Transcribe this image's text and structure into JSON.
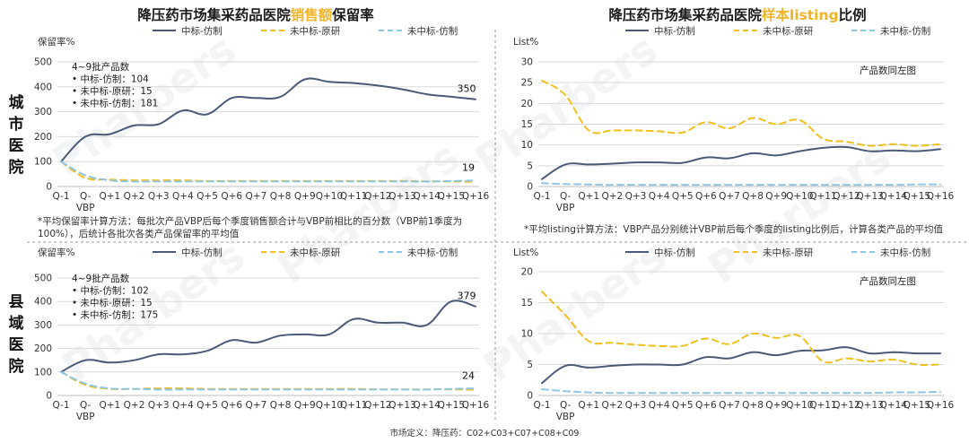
{
  "left_titles": {
    "top": "降压药市场集采药品医院销售额保留率",
    "bottom": ""
  },
  "right_titles": {
    "top": "降压药市场集采药品医院样本listing比例",
    "bottom": ""
  },
  "title_parts": {
    "left": {
      "pre": "降压药市场集采药品医院",
      "highlight": "销售额",
      "post": "保留率"
    },
    "right": {
      "pre": "降压药市场集采药品医院",
      "highlight": "样本listing",
      "post": "比例"
    }
  },
  "row_labels": {
    "city": "城市医院",
    "county": "县域医院"
  },
  "legend": [
    "中标-仿制",
    "未中标-原研",
    "未中标-仿制"
  ],
  "colors": {
    "series1": "#4a5a78",
    "series2": "#f0c020",
    "series3": "#8ec6e6",
    "highlight": "#f0b428",
    "grid": "#d9d9d9"
  },
  "notes": {
    "left": "*平均保留率计算方法：每批次产品VBP后每个季度销售额合计与VBP前相比的百分数（VBP前1季度为100%），后统计各批次各类产品保留率的平均值",
    "right": "*平均listing计算方法：VBP产品分别统计VBP前后每个季度的listing比例后，计算各类产品的平均值"
  },
  "footer": "市场定义：降压药：C02+C03+C07+C08+C09",
  "watermark": "Pharbers",
  "chart_data": [
    {
      "id": "city-retention",
      "type": "line",
      "title": "降压药市场集采药品医院销售额保留率",
      "ylabel": "保留率%",
      "ylim": [
        0,
        500
      ],
      "yticks": [
        0,
        100,
        200,
        300,
        400,
        500
      ],
      "categories": [
        "Q-1",
        "Q-VBP",
        "Q+1",
        "Q+2",
        "Q+3",
        "Q+4",
        "Q+5",
        "Q+6",
        "Q+7",
        "Q+8",
        "Q+9",
        "Q+10",
        "Q+11",
        "Q+12",
        "Q+13",
        "Q+14",
        "Q+15",
        "Q+16"
      ],
      "series": [
        {
          "name": "中标-仿制",
          "values": [
            100,
            200,
            210,
            245,
            250,
            305,
            290,
            355,
            355,
            360,
            430,
            420,
            415,
            405,
            390,
            370,
            360,
            350
          ]
        },
        {
          "name": "未中标-原研",
          "values": [
            100,
            35,
            28,
            25,
            25,
            25,
            22,
            22,
            22,
            22,
            22,
            22,
            22,
            22,
            22,
            21,
            20,
            19
          ]
        },
        {
          "name": "未中标-仿制",
          "values": [
            100,
            45,
            25,
            20,
            20,
            20,
            20,
            20,
            20,
            20,
            20,
            20,
            20,
            20,
            20,
            20,
            22,
            24
          ]
        }
      ],
      "data_labels": [
        "350",
        "19"
      ],
      "annotation": {
        "lines": [
          "4~9批产品数",
          "• 中标-仿制：104",
          "• 未中标-原研：15",
          "• 未中标-仿制：181"
        ]
      }
    },
    {
      "id": "city-listing",
      "type": "line",
      "title": "降压药市场集采药品医院样本listing比例",
      "ylabel": "List%",
      "ylim": [
        0,
        30
      ],
      "yticks": [
        0,
        5,
        10,
        15,
        20,
        25,
        30
      ],
      "categories": [
        "Q-1",
        "Q-VBP",
        "Q+1",
        "Q+2",
        "Q+3",
        "Q+4",
        "Q+5",
        "Q+6",
        "Q+7",
        "Q+8",
        "Q+9",
        "Q+10",
        "Q+11",
        "Q+12",
        "Q+13",
        "Q+14",
        "Q+15",
        "Q+16"
      ],
      "series": [
        {
          "name": "中标-仿制",
          "values": [
            1.8,
            5.3,
            5.3,
            5.5,
            5.8,
            5.8,
            5.7,
            7.0,
            6.8,
            8.0,
            7.5,
            8.5,
            9.3,
            9.5,
            8.5,
            8.7,
            8.5,
            9.0
          ]
        },
        {
          "name": "未中标-原研",
          "values": [
            25.5,
            22.0,
            13.5,
            13.5,
            13.5,
            13.3,
            13.0,
            15.5,
            14.0,
            16.5,
            15.0,
            16.0,
            11.5,
            10.8,
            9.8,
            10.2,
            9.8,
            10.2
          ]
        },
        {
          "name": "未中标-仿制",
          "values": [
            0.8,
            0.6,
            0.5,
            0.4,
            0.4,
            0.4,
            0.4,
            0.4,
            0.4,
            0.4,
            0.4,
            0.4,
            0.4,
            0.4,
            0.4,
            0.4,
            0.5,
            0.5
          ]
        }
      ],
      "annotation": {
        "lines": [
          "产品数同左图"
        ]
      }
    },
    {
      "id": "county-retention",
      "type": "line",
      "title": "",
      "ylabel": "保留率%",
      "ylim": [
        0,
        500
      ],
      "yticks": [
        0,
        100,
        200,
        300,
        400,
        500
      ],
      "categories": [
        "Q-1",
        "Q-VBP",
        "Q+1",
        "Q+2",
        "Q+3",
        "Q+4",
        "Q+5",
        "Q+6",
        "Q+7",
        "Q+8",
        "Q+9",
        "Q+10",
        "Q+11",
        "Q+12",
        "Q+13",
        "Q+14",
        "Q+15",
        "Q+16"
      ],
      "series": [
        {
          "name": "中标-仿制",
          "values": [
            100,
            150,
            140,
            150,
            175,
            175,
            190,
            235,
            225,
            255,
            260,
            260,
            325,
            310,
            310,
            300,
            400,
            379
          ]
        },
        {
          "name": "未中标-原研",
          "values": [
            100,
            45,
            28,
            28,
            30,
            30,
            28,
            28,
            28,
            28,
            28,
            28,
            28,
            26,
            26,
            26,
            26,
            24
          ]
        },
        {
          "name": "未中标-仿制",
          "values": [
            100,
            50,
            30,
            28,
            25,
            25,
            25,
            25,
            25,
            25,
            25,
            25,
            25,
            25,
            25,
            25,
            28,
            30
          ]
        }
      ],
      "data_labels": [
        "379",
        "24"
      ],
      "annotation": {
        "lines": [
          "4~9批产品数",
          "• 中标-仿制：102",
          "• 未中标-原研：15",
          "• 未中标-仿制：175"
        ]
      }
    },
    {
      "id": "county-listing",
      "type": "line",
      "title": "",
      "ylabel": "List%",
      "ylim": [
        0,
        20
      ],
      "yticks": [
        0,
        5,
        10,
        15,
        20
      ],
      "categories": [
        "Q-1",
        "Q-VBP",
        "Q+1",
        "Q+2",
        "Q+3",
        "Q+4",
        "Q+5",
        "Q+6",
        "Q+7",
        "Q+8",
        "Q+9",
        "Q+10",
        "Q+11",
        "Q+12",
        "Q+13",
        "Q+14",
        "Q+15",
        "Q+16"
      ],
      "series": [
        {
          "name": "中标-仿制",
          "values": [
            2.0,
            4.8,
            4.5,
            4.8,
            5.0,
            5.0,
            5.0,
            6.2,
            6.0,
            7.0,
            6.5,
            7.2,
            7.3,
            7.8,
            6.8,
            7.0,
            6.8,
            6.8
          ]
        },
        {
          "name": "未中标-原研",
          "values": [
            16.8,
            13.0,
            8.8,
            8.5,
            8.2,
            8.0,
            8.0,
            9.2,
            8.3,
            10.0,
            9.3,
            9.6,
            5.5,
            6.0,
            5.5,
            5.8,
            5.0,
            5.0
          ]
        },
        {
          "name": "未中标-仿制",
          "values": [
            1.0,
            0.7,
            0.5,
            0.4,
            0.4,
            0.4,
            0.4,
            0.4,
            0.4,
            0.4,
            0.4,
            0.4,
            0.4,
            0.4,
            0.4,
            0.5,
            0.5,
            0.6
          ]
        }
      ],
      "annotation": {
        "lines": [
          "产品数同左图"
        ]
      }
    }
  ]
}
